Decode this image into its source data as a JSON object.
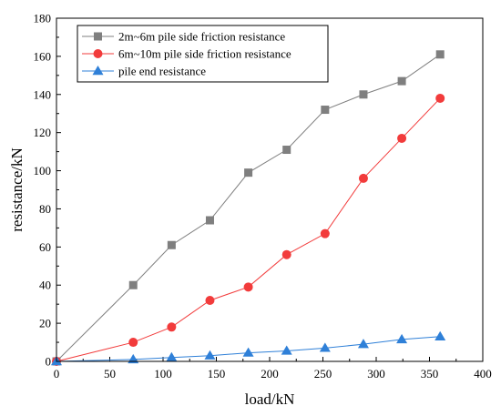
{
  "chart_data": {
    "type": "line",
    "title": "",
    "xlabel": "load/kN",
    "ylabel": "resistance/kN",
    "xlim": [
      0,
      400
    ],
    "ylim": [
      0,
      180
    ],
    "xticks": [
      0,
      50,
      100,
      150,
      200,
      250,
      300,
      350,
      400
    ],
    "yticks": [
      0,
      20,
      40,
      60,
      80,
      100,
      120,
      140,
      160,
      180
    ],
    "grid": false,
    "legend_position": "top-left",
    "series": [
      {
        "name": "2m~6m pile side friction resistance",
        "color": "#7f7f7f",
        "marker": "square",
        "x": [
          0,
          72,
          108,
          144,
          180,
          216,
          252,
          288,
          324,
          360
        ],
        "y": [
          0,
          40,
          61,
          74,
          99,
          111,
          132,
          140,
          147,
          161
        ]
      },
      {
        "name": "6m~10m pile side friction resistance",
        "color": "#f23b3b",
        "marker": "circle",
        "x": [
          0,
          72,
          108,
          144,
          180,
          216,
          252,
          288,
          324,
          360
        ],
        "y": [
          0,
          10,
          18,
          32,
          39,
          56,
          67,
          96,
          117,
          138
        ]
      },
      {
        "name": "pile end resistance",
        "color": "#2f80d8",
        "marker": "triangle",
        "x": [
          0,
          72,
          108,
          144,
          180,
          216,
          252,
          288,
          324,
          360
        ],
        "y": [
          0,
          1,
          2,
          3,
          4.5,
          5.5,
          7,
          9,
          11.5,
          13
        ]
      }
    ]
  }
}
